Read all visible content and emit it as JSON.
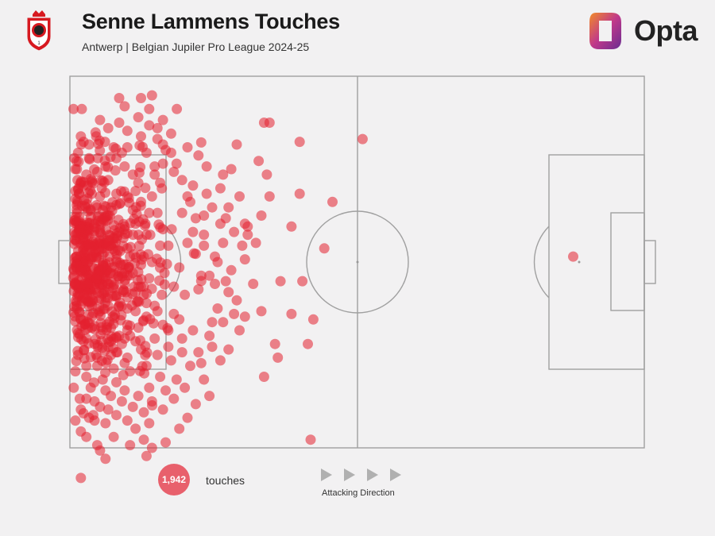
{
  "header": {
    "title": "Senne Lammens Touches",
    "subtitle": "Antwerp | Belgian Jupiler Pro League 2024-25",
    "brand": "Opta"
  },
  "legend": {
    "count": "1,942",
    "count_label": "touches",
    "direction_label": "Attacking Direction"
  },
  "colors": {
    "touch": "#e3202f",
    "pitch_lines": "#a0a0a0",
    "background": "#f2f1f2"
  },
  "icons": [
    "club-crest-icon",
    "opta-logo-icon",
    "direction-arrow-icon"
  ],
  "chart_data": {
    "type": "scatter",
    "pitch_length": 105,
    "pitch_width": 68,
    "total_touches": 1942,
    "sample_points": [
      [
        0.8,
        15.0
      ],
      [
        1.0,
        17.0
      ],
      [
        1.4,
        19.0
      ],
      [
        3.5,
        15.0
      ],
      [
        5.1,
        15.0
      ],
      [
        3.0,
        18.0
      ],
      [
        1.5,
        14.0
      ],
      [
        2.0,
        11.0
      ],
      [
        2.5,
        12.0
      ],
      [
        3.5,
        12.5
      ],
      [
        4.8,
        11.0
      ],
      [
        6.4,
        12.0
      ],
      [
        8.0,
        13.0
      ],
      [
        9.5,
        14.0
      ],
      [
        10.0,
        16.5
      ],
      [
        11.5,
        18.0
      ],
      [
        12.0,
        21.0
      ],
      [
        13.0,
        23.0
      ],
      [
        14.5,
        25.0
      ],
      [
        13.8,
        27.0
      ],
      [
        12.5,
        29.0
      ],
      [
        11.0,
        33.0
      ],
      [
        9.5,
        36.0
      ],
      [
        8.0,
        38.5
      ],
      [
        6.5,
        40.5
      ],
      [
        5.5,
        43.0
      ],
      [
        4.0,
        46.0
      ],
      [
        2.5,
        48.5
      ],
      [
        1.5,
        51.0
      ],
      [
        1.0,
        54.0
      ],
      [
        0.7,
        57.0
      ],
      [
        3.0,
        55.0
      ],
      [
        5.0,
        53.0
      ],
      [
        7.5,
        51.0
      ],
      [
        9.5,
        49.0
      ],
      [
        11.0,
        47.5
      ],
      [
        12.5,
        46.0
      ],
      [
        14.0,
        44.0
      ],
      [
        15.5,
        42.0
      ],
      [
        16.8,
        40.0
      ],
      [
        17.3,
        36.0
      ],
      [
        18.0,
        31.0
      ],
      [
        18.6,
        28.0
      ],
      [
        20.5,
        25.0
      ],
      [
        22.0,
        23.0
      ],
      [
        21.5,
        30.5
      ],
      [
        23.0,
        32.5
      ],
      [
        24.5,
        31.0
      ],
      [
        20.0,
        35.0
      ],
      [
        19.0,
        38.5
      ],
      [
        21.0,
        40.0
      ],
      [
        23.5,
        39.0
      ],
      [
        25.5,
        36.5
      ],
      [
        28.0,
        30.5
      ],
      [
        27.5,
        27.0
      ],
      [
        29.5,
        35.5
      ],
      [
        33.5,
        38.0
      ],
      [
        30.5,
        41.0
      ],
      [
        26.0,
        45.0
      ],
      [
        22.5,
        46.5
      ],
      [
        20.5,
        48.0
      ],
      [
        18.0,
        49.5
      ],
      [
        16.0,
        51.0
      ],
      [
        14.0,
        53.0
      ],
      [
        11.0,
        54.0
      ],
      [
        8.5,
        56.0
      ],
      [
        6.5,
        57.5
      ],
      [
        4.5,
        59.5
      ],
      [
        2.0,
        61.0
      ],
      [
        3.0,
        59.0
      ],
      [
        5.5,
        8.0
      ],
      [
        7.0,
        9.5
      ],
      [
        9.0,
        8.5
      ],
      [
        10.5,
        10.0
      ],
      [
        12.5,
        7.5
      ],
      [
        14.5,
        9.0
      ],
      [
        16.0,
        11.5
      ],
      [
        17.5,
        13.5
      ],
      [
        19.5,
        16.0
      ],
      [
        20.5,
        19.0
      ],
      [
        22.5,
        20.0
      ],
      [
        25.0,
        21.5
      ],
      [
        26.0,
        24.0
      ],
      [
        28.5,
        26.0
      ],
      [
        30.0,
        28.5
      ],
      [
        31.5,
        31.0
      ],
      [
        32.0,
        33.5
      ],
      [
        27.0,
        34.0
      ],
      [
        24.0,
        36.5
      ],
      [
        26.5,
        38.0
      ],
      [
        29.0,
        39.5
      ],
      [
        19.0,
        43.5
      ],
      [
        17.0,
        45.5
      ],
      [
        15.5,
        48.0
      ],
      [
        13.0,
        50.0
      ],
      [
        10.5,
        51.5
      ],
      [
        8.0,
        53.5
      ],
      [
        6.0,
        55.5
      ],
      [
        3.8,
        57.0
      ],
      [
        1.8,
        59.0
      ],
      [
        9.0,
        4.0
      ],
      [
        10.0,
        5.5
      ],
      [
        14.0,
        14.0
      ],
      [
        15.5,
        16.5
      ],
      [
        16.5,
        19.5
      ],
      [
        15.0,
        22.0
      ],
      [
        16.0,
        25.0
      ],
      [
        17.0,
        28.0
      ],
      [
        16.5,
        31.0
      ],
      [
        15.0,
        34.0
      ],
      [
        14.5,
        37.0
      ],
      [
        13.5,
        40.0
      ],
      [
        12.0,
        43.0
      ],
      [
        10.5,
        45.5
      ],
      [
        9.0,
        47.5
      ],
      [
        7.0,
        49.5
      ],
      [
        5.0,
        51.5
      ],
      [
        3.0,
        53.0
      ],
      [
        1.5,
        47.0
      ],
      [
        1.2,
        42.0
      ],
      [
        1.0,
        38.0
      ],
      [
        1.2,
        33.0
      ],
      [
        1.0,
        29.0
      ],
      [
        1.3,
        25.0
      ],
      [
        1.0,
        21.0
      ],
      [
        4.0,
        21.5
      ],
      [
        4.5,
        27.0
      ],
      [
        4.0,
        33.0
      ],
      [
        4.5,
        39.0
      ],
      [
        4.0,
        44.0
      ],
      [
        7.0,
        19.0
      ],
      [
        7.5,
        24.0
      ],
      [
        7.0,
        30.0
      ],
      [
        7.5,
        36.0
      ],
      [
        7.0,
        42.0
      ],
      [
        7.5,
        46.0
      ],
      [
        10.5,
        22.0
      ],
      [
        10.0,
        27.5
      ],
      [
        10.5,
        31.5
      ],
      [
        10.0,
        38.0
      ],
      [
        10.5,
        42.5
      ],
      [
        12.5,
        19.5
      ],
      [
        13.0,
        34.5
      ],
      [
        13.5,
        38.5
      ],
      [
        28.0,
        45.0
      ],
      [
        38.5,
        37.5
      ],
      [
        40.5,
        43.5
      ],
      [
        37.5,
        49.0
      ],
      [
        34.5,
        15.5
      ],
      [
        30.5,
        12.5
      ],
      [
        29.5,
        17.0
      ],
      [
        28.0,
        18.0
      ],
      [
        24.5,
        25.5
      ],
      [
        22.5,
        28.5
      ],
      [
        31.0,
        22.0
      ],
      [
        32.0,
        27.0
      ],
      [
        34.0,
        30.5
      ],
      [
        32.5,
        29.0
      ],
      [
        36.5,
        22.0
      ],
      [
        35.0,
        25.5
      ],
      [
        40.5,
        27.5
      ],
      [
        42.5,
        37.5
      ],
      [
        42.0,
        12.0
      ],
      [
        44.5,
        44.5
      ],
      [
        46.5,
        31.5
      ],
      [
        48.0,
        23.0
      ],
      [
        42.0,
        21.5
      ],
      [
        36.0,
        18.0
      ],
      [
        36.5,
        8.5
      ],
      [
        35.5,
        8.5
      ],
      [
        32.5,
        27.5
      ],
      [
        29.0,
        24.0
      ],
      [
        27.5,
        20.5
      ],
      [
        25.0,
        16.5
      ],
      [
        23.5,
        14.5
      ],
      [
        21.5,
        13.0
      ],
      [
        18.5,
        10.5
      ],
      [
        17.0,
        8.0
      ],
      [
        14.5,
        6.0
      ],
      [
        13.0,
        4.0
      ],
      [
        15.0,
        3.5
      ],
      [
        16.0,
        9.5
      ],
      [
        19.0,
        17.5
      ],
      [
        21.5,
        22.0
      ],
      [
        23.0,
        26.0
      ],
      [
        24.5,
        29.0
      ],
      [
        26.5,
        33.0
      ],
      [
        28.5,
        37.5
      ],
      [
        20.0,
        44.5
      ],
      [
        18.5,
        52.0
      ],
      [
        16.5,
        55.0
      ],
      [
        14.5,
        57.0
      ],
      [
        12.5,
        58.5
      ],
      [
        10.0,
        57.5
      ],
      [
        7.5,
        58.5
      ],
      [
        5.5,
        60.5
      ],
      [
        4.5,
        63.0
      ],
      [
        2.0,
        65.0
      ],
      [
        1.0,
        63.0
      ],
      [
        3.5,
        62.5
      ],
      [
        6.5,
        63.5
      ],
      [
        8.5,
        62.0
      ],
      [
        11.5,
        60.5
      ],
      [
        13.5,
        61.5
      ],
      [
        15.0,
        59.5
      ],
      [
        17.5,
        57.5
      ],
      [
        19.5,
        55.5
      ],
      [
        22.0,
        53.0
      ],
      [
        23.5,
        50.5
      ],
      [
        25.5,
        47.5
      ],
      [
        27.0,
        42.5
      ],
      [
        26.0,
        49.5
      ],
      [
        29.0,
        50.0
      ],
      [
        31.0,
        46.5
      ],
      [
        35.5,
        55.0
      ],
      [
        38.0,
        51.5
      ],
      [
        43.5,
        49.0
      ],
      [
        35.0,
        43.0
      ],
      [
        32.0,
        44.0
      ],
      [
        30.0,
        43.5
      ],
      [
        27.5,
        52.0
      ],
      [
        24.5,
        55.5
      ],
      [
        21.0,
        57.0
      ],
      [
        19.0,
        59.0
      ],
      [
        17.0,
        61.0
      ],
      [
        14.5,
        63.5
      ],
      [
        12.0,
        64.5
      ],
      [
        10.5,
        63.0
      ],
      [
        9.5,
        59.5
      ],
      [
        7.0,
        61.0
      ],
      [
        3.0,
        66.0
      ],
      [
        5.0,
        67.5
      ],
      [
        6.5,
        70.0
      ],
      [
        2.0,
        73.5
      ],
      [
        5.5,
        68.5
      ],
      [
        8.0,
        66.0
      ],
      [
        11.0,
        67.5
      ],
      [
        13.5,
        66.5
      ],
      [
        14.0,
        69.5
      ],
      [
        15.0,
        68.0
      ],
      [
        17.5,
        67.0
      ],
      [
        20.0,
        64.5
      ],
      [
        21.5,
        62.5
      ],
      [
        23.0,
        60.0
      ],
      [
        25.5,
        58.5
      ],
      [
        24.0,
        52.5
      ],
      [
        20.5,
        50.5
      ],
      [
        18.0,
        46.5
      ],
      [
        16.0,
        43.0
      ],
      [
        14.0,
        41.5
      ],
      [
        12.0,
        48.5
      ],
      [
        10.0,
        52.5
      ],
      [
        8.0,
        48.0
      ],
      [
        6.0,
        46.5
      ],
      [
        4.5,
        49.0
      ],
      [
        3.5,
        42.0
      ],
      [
        3.0,
        36.5
      ],
      [
        5.5,
        30.0
      ],
      [
        6.0,
        24.5
      ],
      [
        3.0,
        24.0
      ],
      [
        13.5,
        33.0
      ],
      [
        14.0,
        29.0
      ],
      [
        15.5,
        18.0
      ],
      [
        17.0,
        16.0
      ],
      [
        18.5,
        14.0
      ],
      [
        17.0,
        12.5
      ],
      [
        13.0,
        11.0
      ],
      [
        10.5,
        13.0
      ],
      [
        8.5,
        15.0
      ],
      [
        6.5,
        16.5
      ],
      [
        5.0,
        17.5
      ],
      [
        2.5,
        20.0
      ],
      [
        2.0,
        28.0
      ],
      [
        2.0,
        35.5
      ],
      [
        2.5,
        40.0
      ],
      [
        2.0,
        44.5
      ],
      [
        6.5,
        39.5
      ],
      [
        8.5,
        33.5
      ],
      [
        9.0,
        28.5
      ],
      [
        8.5,
        21.5
      ],
      [
        11.5,
        24.5
      ],
      [
        12.0,
        27.0
      ],
      [
        11.5,
        36.0
      ],
      [
        12.0,
        39.5
      ],
      [
        10.0,
        48.0
      ],
      [
        8.5,
        50.5
      ],
      [
        44.0,
        66.5
      ],
      [
        92.0,
        33.0
      ],
      [
        53.5,
        11.5
      ]
    ]
  }
}
